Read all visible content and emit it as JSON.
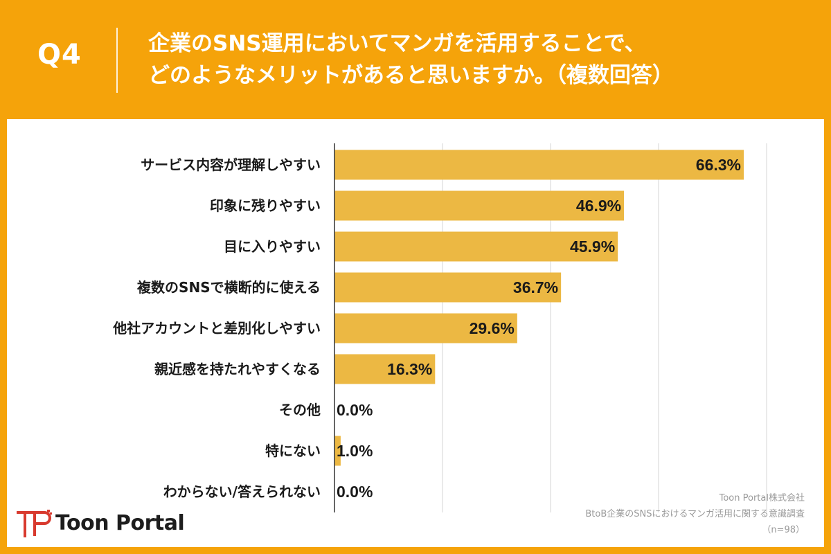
{
  "header": {
    "question_label": "Q4",
    "title_line1": "企業のSNS運用においてマンガを活用することで、",
    "title_line2": "どのようなメリットがあると思いますか。（複数回答）"
  },
  "source": {
    "company": "Toon Portal株式会社",
    "survey": "BtoB企業のSNSにおけるマンガ活用に関する意識調査",
    "sample": "（n=98）"
  },
  "logo": {
    "text": "Toon Portal",
    "icon": "toon-portal-logo-icon"
  },
  "colors": {
    "header_bg": "#F5A30A",
    "bar": "#ECB843",
    "panel_bg": "#FFFFFF",
    "grid": "#D5D5D5",
    "text": "#1A1A1A"
  },
  "chart_data": {
    "type": "bar",
    "orientation": "horizontal",
    "categories": [
      "サービス内容が理解しやすい",
      "印象に残りやすい",
      "目に入りやすい",
      "複数のSNSで横断的に使える",
      "他社アカウントと差別化しやすい",
      "親近感を持たれやすくなる",
      "その他",
      "特にない",
      "わからない/答えられない"
    ],
    "values": [
      66.3,
      46.9,
      45.9,
      36.7,
      29.6,
      16.3,
      0.0,
      1.0,
      0.0
    ],
    "value_labels": [
      "66.3%",
      "46.9%",
      "45.9%",
      "36.7%",
      "29.6%",
      "16.3%",
      "0.0%",
      "1.0%",
      "0.0%"
    ],
    "xlim": [
      0,
      70
    ],
    "grid_step": 17.5,
    "grid": true,
    "legend": "none"
  }
}
